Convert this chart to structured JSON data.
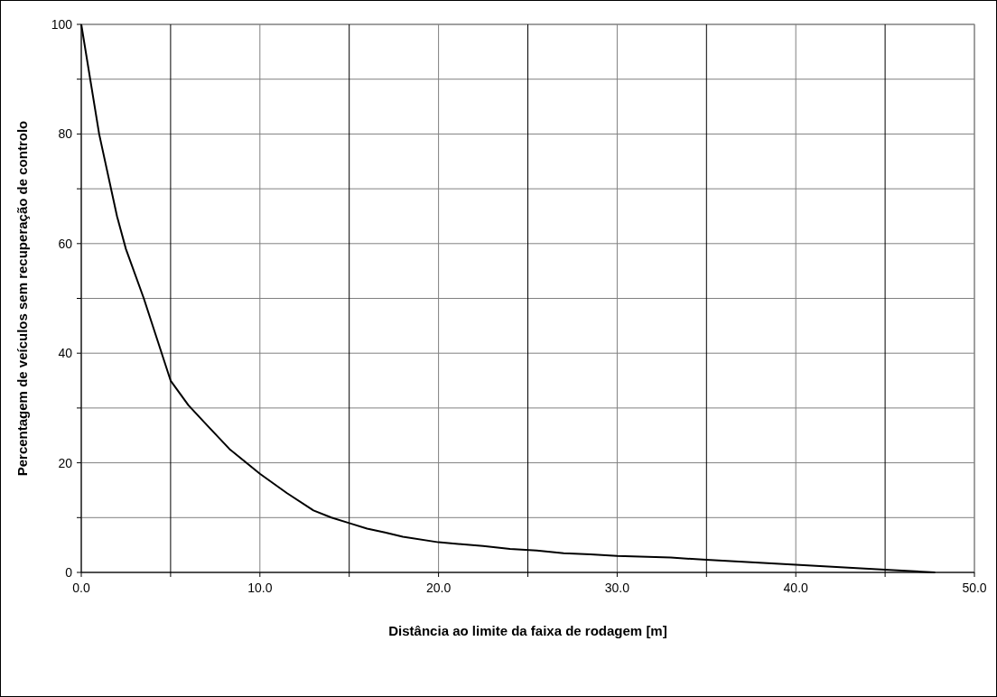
{
  "chart_data": {
    "type": "line",
    "xlabel": "Distância ao limite da faixa de rodagem [m]",
    "ylabel": "Percentagem de veículos sem recuperação de controlo",
    "x": [
      0,
      1,
      2,
      2.5,
      3.5,
      4.3,
      5,
      6,
      7,
      8.3,
      10,
      11.5,
      13,
      14,
      15,
      16,
      17,
      18,
      20,
      22.5,
      24,
      25.5,
      27,
      28.5,
      30,
      33,
      35,
      40,
      45,
      47.8
    ],
    "series": [
      {
        "color": "#000000",
        "values": [
          100,
          80,
          65,
          59,
          50,
          42,
          35,
          30.5,
          27,
          22.5,
          18,
          14.5,
          11.3,
          10,
          9,
          8,
          7.3,
          6.5,
          5.5,
          4.8,
          4.3,
          4,
          3.5,
          3.3,
          3,
          2.7,
          2.3,
          1.4,
          0.5,
          0
        ]
      }
    ],
    "xlim": [
      0,
      50
    ],
    "xticks": [
      {
        "value": 0,
        "label": "0.0"
      },
      {
        "value": 5,
        "label": null
      },
      {
        "value": 10,
        "label": "10.0"
      },
      {
        "value": 15,
        "label": null
      },
      {
        "value": 20,
        "label": "20.0"
      },
      {
        "value": 25,
        "label": null
      },
      {
        "value": 30,
        "label": "30.0"
      },
      {
        "value": 35,
        "label": null
      },
      {
        "value": 40,
        "label": "40.0"
      },
      {
        "value": 45,
        "label": null
      },
      {
        "value": 50,
        "label": "50.0"
      }
    ],
    "ylim": [
      0,
      100
    ],
    "yticks": [
      0,
      {
        "value": 10,
        "label": null
      },
      20,
      {
        "value": 30,
        "label": null
      },
      40,
      {
        "value": 50,
        "label": null
      },
      60,
      {
        "value": 70,
        "label": null
      },
      80,
      {
        "value": 90,
        "label": null
      },
      100
    ],
    "grid": true,
    "marker": "none",
    "line_style": "solid"
  }
}
